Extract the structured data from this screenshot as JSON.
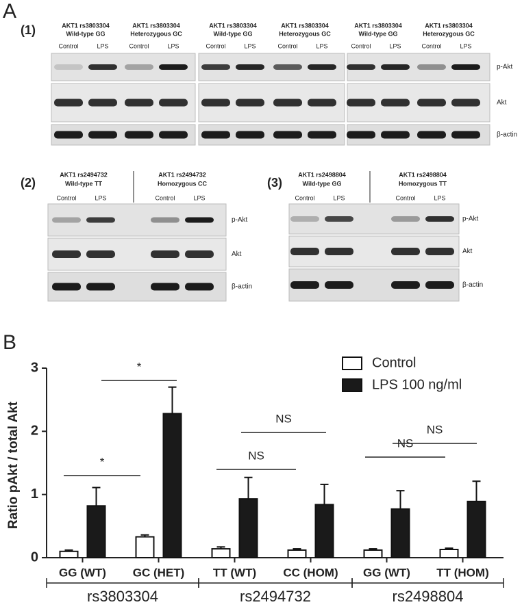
{
  "panel_a": {
    "label": "A",
    "blots": [
      {
        "label": "(1)",
        "rows": [
          "p-Akt",
          "Akt",
          "β-actin"
        ],
        "columns": [
          {
            "gene": "AKT1 rs3803304",
            "genotype": "Wild-type GG",
            "lanes": [
              "Control",
              "LPS"
            ]
          },
          {
            "gene": "AKT1 rs3803304",
            "genotype": "Heterozygous GC",
            "lanes": [
              "Control",
              "LPS"
            ]
          },
          {
            "gene": "AKT1 rs3803304",
            "genotype": "Wild-type GG",
            "lanes": [
              "Control",
              "LPS"
            ]
          },
          {
            "gene": "AKT1 rs3803304",
            "genotype": "Heterozygous GC",
            "lanes": [
              "Control",
              "LPS"
            ]
          },
          {
            "gene": "AKT1 rs3803304",
            "genotype": "Wild-type GG",
            "lanes": [
              "Control",
              "LPS"
            ]
          },
          {
            "gene": "AKT1 rs3803304",
            "genotype": "Heterozygous GC",
            "lanes": [
              "Control",
              "LPS"
            ]
          }
        ]
      },
      {
        "label": "(2)",
        "rows": [
          "p-Akt",
          "Akt",
          "β-actin"
        ],
        "columns": [
          {
            "gene": "AKT1 rs2494732",
            "genotype": "Wild-type TT",
            "lanes": [
              "Control",
              "LPS"
            ]
          },
          {
            "gene": "AKT1 rs2494732",
            "genotype": "Homozygous CC",
            "lanes": [
              "Control",
              "LPS"
            ]
          }
        ]
      },
      {
        "label": "(3)",
        "rows": [
          "p-Akt",
          "Akt",
          "β-actin"
        ],
        "columns": [
          {
            "gene": "AKT1 rs2498804",
            "genotype": "Wild-type GG",
            "lanes": [
              "Control",
              "LPS"
            ]
          },
          {
            "gene": "AKT1 rs2498804",
            "genotype": "Homozygous TT",
            "lanes": [
              "Control",
              "LPS"
            ]
          }
        ]
      }
    ]
  },
  "panel_b": {
    "label": "B"
  },
  "chart_data": {
    "type": "bar",
    "y_label": "Ratio pAkt / total Akt",
    "categories": [
      "GG (WT)",
      "GC (HET)",
      "TT (WT)",
      "CC (HOM)",
      "GG (WT)",
      "TT (HOM)"
    ],
    "groups": [
      "rs3803304",
      "rs2494732",
      "rs2498804"
    ],
    "series": [
      {
        "name": "Control",
        "color": "#ffffff",
        "values": [
          0.1,
          0.33,
          0.14,
          0.12,
          0.12,
          0.13
        ],
        "errors": [
          0.02,
          0.03,
          0.03,
          0.02,
          0.02,
          0.02
        ]
      },
      {
        "name": "LPS 100 ng/ml",
        "color": "#1a1a1a",
        "values": [
          0.82,
          2.28,
          0.93,
          0.84,
          0.77,
          0.89
        ],
        "errors": [
          0.29,
          0.42,
          0.34,
          0.32,
          0.29,
          0.32
        ]
      }
    ],
    "ylim": [
      0,
      3
    ],
    "yticks": [
      0,
      1,
      2,
      3
    ],
    "annotations": [
      "*",
      "*",
      "NS",
      "NS",
      "NS",
      "NS"
    ]
  }
}
